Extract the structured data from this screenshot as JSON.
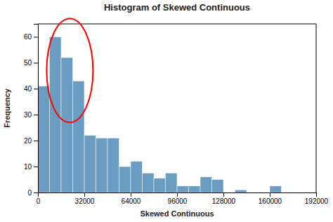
{
  "chart_data": {
    "type": "histogram",
    "title": "Histogram of Skewed Continuous",
    "x_label": "Skewed Continuous",
    "y_label": "Frequency",
    "bins": [
      0,
      8000,
      16000,
      24000,
      32000,
      40000,
      48000,
      56000,
      64000,
      72000,
      80000,
      88000,
      96000,
      104000,
      112000,
      120000,
      128000,
      136000,
      144000,
      152000,
      160000,
      168000,
      176000,
      184000,
      192000
    ],
    "values": [
      41,
      60,
      52,
      43,
      22,
      21,
      21,
      10,
      12,
      7.5,
      5.5,
      7.5,
      2.5,
      2.5,
      6,
      5,
      0,
      1,
      0,
      0,
      2.5,
      0,
      0,
      0
    ],
    "color": "#6b9dc2",
    "xlim": [
      0,
      192000
    ],
    "ylim": [
      0,
      65
    ],
    "xticks": [
      0,
      32000,
      64000,
      96000,
      128000,
      160000,
      192000
    ],
    "yticks": [
      0,
      10,
      20,
      30,
      40,
      50,
      60
    ],
    "grid": false,
    "ellipse": {
      "cx": 22000,
      "cy": 47,
      "rx": 16000,
      "ry": 20,
      "color": "red"
    }
  }
}
